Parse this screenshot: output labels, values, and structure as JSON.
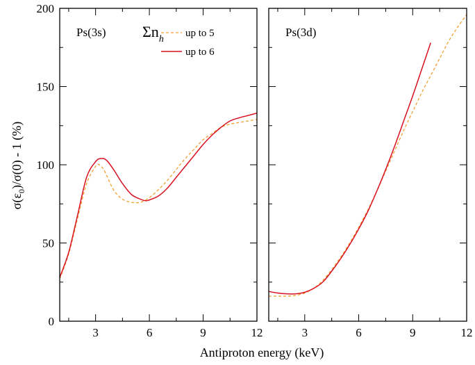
{
  "chart_data": {
    "type": "line",
    "ylabel_parts": {
      "a": "σ(ε",
      "sub": "0",
      "b": ")/σ(0) - 1 (%)"
    },
    "xlabel": "Antiproton energy (keV)",
    "colors": {
      "up_to_5": "#f0a030",
      "up_to_6": "#d81020"
    },
    "legend": {
      "title": "Σn",
      "title_sub": "h",
      "placement": "top-right of left panel",
      "entries": [
        {
          "label": "up to 5",
          "style": "dashed",
          "series": "up_to_5"
        },
        {
          "label": "up to 6",
          "style": "solid",
          "series": "up_to_6"
        }
      ]
    },
    "panels": [
      {
        "label": "Ps(3s)",
        "xlim": [
          1,
          12
        ],
        "ylim": [
          0,
          200
        ],
        "xticks": [
          "3",
          "6",
          "9",
          "12"
        ],
        "yticks": [
          "0",
          "50",
          "100",
          "150",
          "200"
        ],
        "series": [
          {
            "name": "up to 5",
            "x": [
              1.0,
              1.5,
              2.0,
              2.5,
              3.0,
              3.2,
              3.5,
              4.0,
              4.5,
              5.0,
              5.5,
              6.0,
              6.5,
              7.0,
              7.5,
              8.0,
              8.5,
              9.0,
              9.5,
              10.0,
              10.5,
              11.0,
              11.5,
              12.0
            ],
            "y": [
              27,
              43,
              66,
              88,
              99,
              100,
              96,
              84,
              78,
              76,
              76,
              79,
              84,
              90,
              97,
              104,
              110,
              116,
              120,
              124,
              126,
              127,
              128,
              129
            ]
          },
          {
            "name": "up to 6",
            "x": [
              1.0,
              1.5,
              2.0,
              2.5,
              3.0,
              3.3,
              3.6,
              4.0,
              4.5,
              5.0,
              5.5,
              5.8,
              6.0,
              6.5,
              7.0,
              7.5,
              8.0,
              8.5,
              9.0,
              9.5,
              10.0,
              10.5,
              11.0,
              11.5,
              12.0
            ],
            "y": [
              28,
              44,
              68,
              92,
              102,
              104,
              103,
              97,
              88,
              81,
              78,
              77,
              77.5,
              80,
              85,
              92,
              99,
              106,
              113,
              119,
              124,
              128,
              130,
              131.5,
              133
            ]
          }
        ]
      },
      {
        "label": "Ps(3d)",
        "xlim": [
          1,
          12
        ],
        "ylim": [
          0,
          200
        ],
        "xticks": [
          "3",
          "6",
          "9",
          "12"
        ],
        "yticks": [],
        "series": [
          {
            "name": "up to 5",
            "x": [
              1.0,
              1.5,
              2.0,
              2.5,
              3.0,
              3.5,
              4.0,
              4.5,
              5.0,
              5.5,
              6.0,
              6.5,
              7.0,
              7.5,
              8.0,
              8.5,
              9.0,
              9.5,
              10.0,
              10.5,
              11.0,
              11.5,
              12.0
            ],
            "y": [
              16,
              16,
              16,
              16.5,
              18,
              21,
              26,
              33,
              41,
              50,
              60,
              71,
              83,
              96,
              109,
              122,
              134,
              146,
              157,
              168,
              179,
              188,
              196
            ]
          },
          {
            "name": "up to 6",
            "x": [
              1.0,
              1.5,
              2.0,
              2.5,
              3.0,
              3.5,
              4.0,
              4.5,
              5.0,
              5.5,
              6.0,
              6.5,
              7.0,
              7.5,
              8.0,
              8.5,
              9.0,
              9.5,
              10.0
            ],
            "y": [
              19,
              18,
              17.5,
              17.5,
              18.5,
              21,
              25,
              32,
              40,
              49,
              59,
              70,
              83,
              97,
              112,
              128,
              144,
              161,
              178
            ]
          }
        ]
      }
    ]
  }
}
